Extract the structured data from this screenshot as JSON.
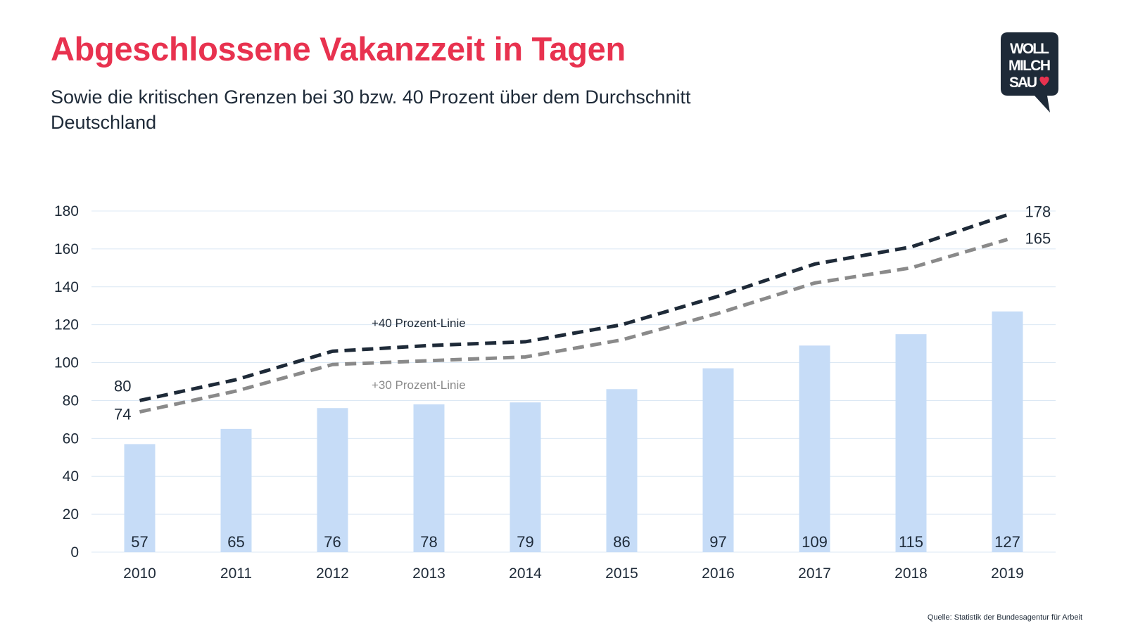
{
  "header": {
    "title": "Abgeschlossene Vakanzzeit in Tagen",
    "subtitle": "Sowie die kritischen Grenzen bei 30 bzw. 40 Prozent über dem Durchschnitt Deutschland"
  },
  "logo": {
    "line1": "WOLL",
    "line2": "MILCH",
    "line3": "SAU",
    "icon": "heart-icon",
    "bubble_color": "#1e2a38",
    "heart_color": "#e8324f"
  },
  "source": "Quelle: Statistik der Bundesagentur für Arbeit",
  "colors": {
    "bars": "#c6dcf7",
    "line40": "#1e2a38",
    "line30": "#8a8a8a",
    "grid": "#dce8f4",
    "text": "#1e2a38"
  },
  "chart_data": {
    "type": "bar",
    "categories": [
      "2010",
      "2011",
      "2012",
      "2013",
      "2014",
      "2015",
      "2016",
      "2017",
      "2018",
      "2019"
    ],
    "values": [
      57,
      65,
      76,
      78,
      79,
      86,
      97,
      109,
      115,
      127
    ],
    "lines": [
      {
        "name": "+40 Prozent-Linie",
        "values": [
          80,
          91,
          106,
          109,
          111,
          120,
          135,
          152,
          161,
          178
        ],
        "labels": {
          "first": "80",
          "last": "178"
        }
      },
      {
        "name": "+30 Prozent-Linie",
        "values": [
          74,
          85,
          99,
          101,
          103,
          112,
          126,
          142,
          150,
          165
        ],
        "labels": {
          "first": "74",
          "last": "165"
        }
      }
    ],
    "ylim": [
      0,
      180
    ],
    "yticks": [
      0,
      20,
      40,
      60,
      80,
      100,
      120,
      140,
      160,
      180
    ],
    "grid": true,
    "title": "",
    "xlabel": "",
    "ylabel": ""
  }
}
